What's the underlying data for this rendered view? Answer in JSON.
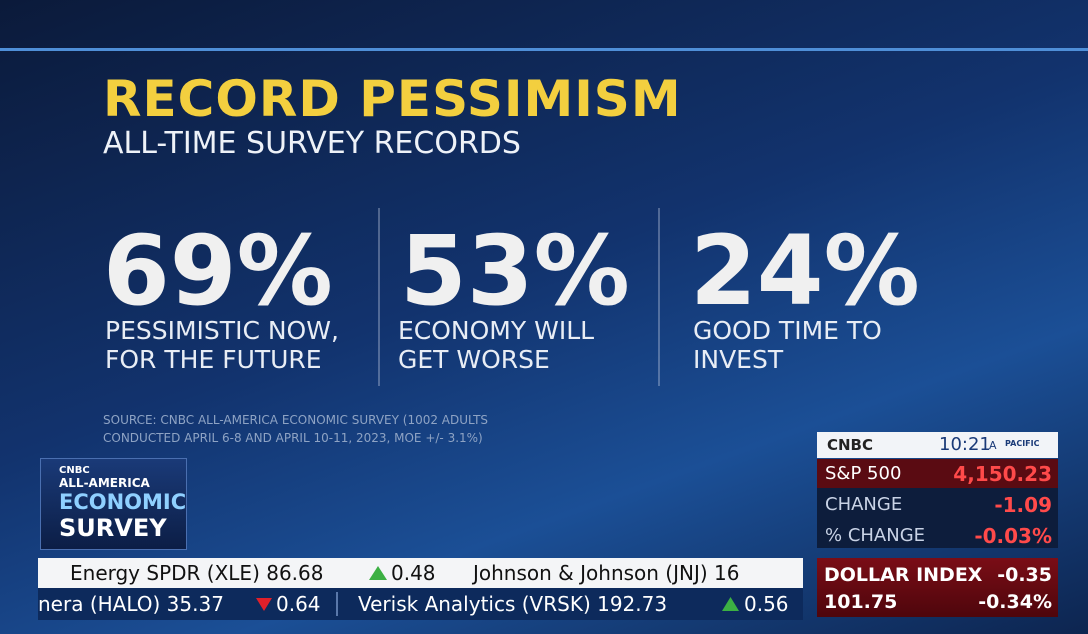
{
  "header": {
    "title": "RECORD PESSIMISM",
    "subtitle": "ALL-TIME SURVEY RECORDS"
  },
  "stats": [
    {
      "value": "69%",
      "lines": [
        "PESSIMISTIC NOW,",
        "FOR THE FUTURE"
      ]
    },
    {
      "value": "53%",
      "lines": [
        "ECONOMY WILL",
        "GET WORSE"
      ]
    },
    {
      "value": "24%",
      "lines": [
        "GOOD TIME TO",
        "INVEST"
      ]
    }
  ],
  "source": [
    "SOURCE: CNBC ALL-AMERICA ECONOMIC SURVEY (1002 ADULTS",
    "CONDUCTED APRIL 6-8 AND APRIL 10-11, 2023, MOE +/- 3.1%)"
  ],
  "badge": {
    "brand": "CNBC",
    "lines": [
      "ALL-AMERICA",
      "ECONOMIC",
      "SURVEY"
    ]
  },
  "market": {
    "brand": "CNBC",
    "time": "10:21",
    "ampm": "A",
    "zone": "PACIFIC",
    "rows": [
      [
        "S&P 500",
        "4,150.23"
      ],
      [
        "CHANGE",
        "-1.09"
      ],
      [
        "% CHANGE",
        "-0.03%"
      ]
    ],
    "dollar": {
      "name": "DOLLAR INDEX",
      "change": "-0.35",
      "value": "101.75",
      "pct": "-0.34%"
    }
  },
  "ticker": {
    "top": [
      {
        "name": "Energy SPDR (XLE) 86.68",
        "change": "0.48"
      },
      {
        "name": "Johnson & Johnson (JNJ) 16"
      }
    ],
    "bottom": [
      {
        "name": "nera (HALO) 35.37",
        "change": "0.64"
      },
      {
        "name": "Verisk Analytics (VRSK) 192.73",
        "change": "0.56"
      }
    ]
  }
}
